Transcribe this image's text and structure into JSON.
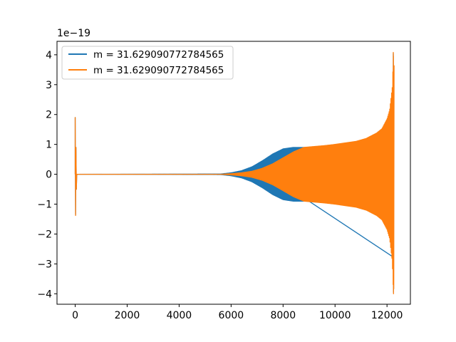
{
  "chart_data": {
    "type": "line",
    "title": "",
    "xlabel": "",
    "ylabel": "",
    "y_offset_label": "1e−19",
    "xlim": [
      -700,
      12900
    ],
    "ylim": [
      -4.35,
      4.45
    ],
    "x_ticks": [
      0,
      2000,
      4000,
      6000,
      8000,
      10000,
      12000
    ],
    "x_tick_labels": [
      "0",
      "2000",
      "4000",
      "6000",
      "8000",
      "10000",
      "12000"
    ],
    "y_ticks": [
      -4,
      -3,
      -2,
      -1,
      0,
      1,
      2,
      3,
      4
    ],
    "y_tick_labels": [
      "−4",
      "−3",
      "−2",
      "−1",
      "0",
      "1",
      "2",
      "3",
      "4"
    ],
    "grid": false,
    "legend_position": "top-left",
    "series": [
      {
        "name": "m = 31.629090772784565",
        "color": "#1f77b4",
        "envelope": {
          "x": [
            0,
            5600,
            6000,
            6400,
            6800,
            7200,
            7600,
            8000,
            8400,
            8800,
            9000
          ],
          "amplitude": [
            0,
            0.01,
            0.05,
            0.12,
            0.25,
            0.45,
            0.68,
            0.85,
            0.9,
            0.9,
            0.9
          ]
        },
        "spikes": [
          {
            "x": 0,
            "max": 1.9,
            "min": -1.35
          },
          {
            "x": 12250,
            "max": 4.05,
            "min": -3.95
          }
        ]
      },
      {
        "name": "m = 31.629090772784565",
        "color": "#ff7f0e",
        "envelope": {
          "x": [
            0,
            5600,
            6000,
            6400,
            6800,
            7200,
            7600,
            8000,
            8400,
            8800,
            9200,
            9600,
            10000,
            10400,
            10800,
            11200,
            11600,
            11800,
            12000,
            12100,
            12200,
            12250,
            12280
          ],
          "amplitude": [
            0,
            0.0,
            0.02,
            0.05,
            0.1,
            0.2,
            0.35,
            0.55,
            0.75,
            0.9,
            0.93,
            0.96,
            1.0,
            1.05,
            1.1,
            1.2,
            1.38,
            1.52,
            1.85,
            2.15,
            2.9,
            4.0,
            3.5
          ]
        },
        "spikes": [
          {
            "x": 0,
            "max": 1.9,
            "min": -1.38
          },
          {
            "x": 12250,
            "max": 4.08,
            "min": -4.0
          }
        ]
      }
    ]
  }
}
